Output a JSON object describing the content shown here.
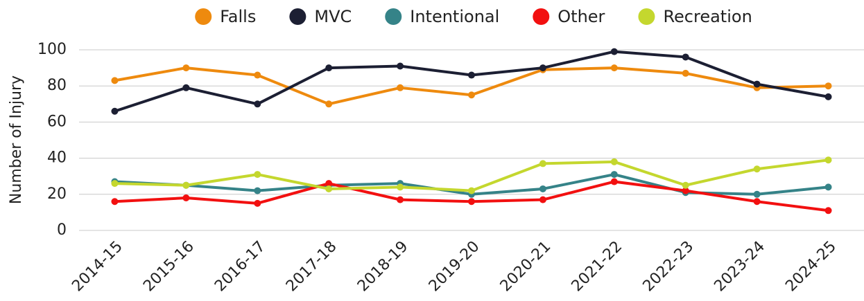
{
  "chart_data": {
    "type": "line",
    "y_label": "Number of Injury",
    "categories": [
      "2014-15",
      "2015-16",
      "2016-17",
      "2017-18",
      "2018-19",
      "2019-20",
      "2020-21",
      "2021-22",
      "2022-23",
      "2023-24",
      "2024-25"
    ],
    "series": [
      {
        "name": "Falls",
        "color": "#ee8a0e",
        "values": [
          83,
          90,
          86,
          70,
          79,
          75,
          89,
          90,
          87,
          79,
          80
        ]
      },
      {
        "name": "MVC",
        "color": "#1c1f33",
        "values": [
          66,
          79,
          70,
          90,
          91,
          86,
          90,
          99,
          96,
          81,
          74
        ]
      },
      {
        "name": "Intentional",
        "color": "#358388",
        "values": [
          27,
          25,
          22,
          25,
          26,
          20,
          23,
          31,
          21,
          20,
          24
        ]
      },
      {
        "name": "Other",
        "color": "#f21010",
        "values": [
          16,
          18,
          15,
          26,
          17,
          16,
          17,
          27,
          22,
          16,
          11
        ]
      },
      {
        "name": "Recreation",
        "color": "#c4d72e",
        "values": [
          26,
          25,
          31,
          23,
          24,
          22,
          37,
          38,
          25,
          34,
          39
        ]
      }
    ],
    "ylim": [
      0,
      100
    ],
    "yticks": [
      0,
      20,
      40,
      60,
      80,
      100
    ],
    "grid": true,
    "legend": "top"
  }
}
